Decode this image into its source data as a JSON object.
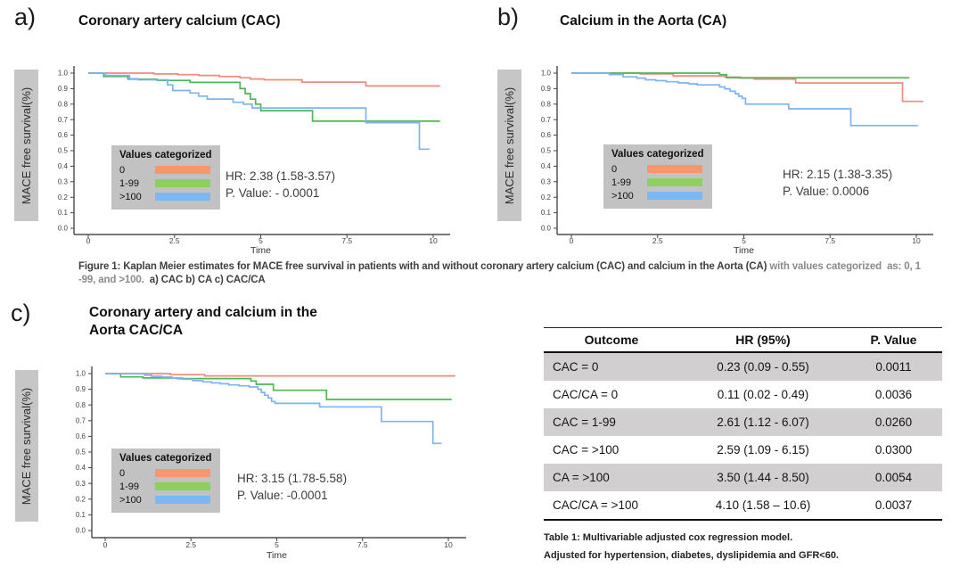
{
  "figure": {
    "panels": [
      {
        "label": "a)",
        "title": "Coronary artery calcium (CAC)",
        "hr": "HR: 2.38 (1.58-3.57)",
        "p": "P. Value: - 0.0001"
      },
      {
        "label": "b)",
        "title": "Calcium in the Aorta (CA)",
        "hr": "HR: 2.15 (1.38-3.35)",
        "p": "P. Value: 0.0006"
      },
      {
        "label": "c)",
        "title_line1": "Coronary artery and calcium in the",
        "title_line2": "Aorta CAC/CA",
        "hr": "HR: 3.15 (1.78-5.58)",
        "p": "P. Value: -0.0001"
      }
    ],
    "caption": {
      "dark1": "Figure 1: Kaplan Meier estimates for MACE free survival in patients with and without coronary artery calcium (CAC) and calcium in the Aorta (CA) ",
      "gray": "with values categorized  as: 0, 1 -99, and >100.  ",
      "dark2": "a) CAC b) CA c) CAC/CA"
    }
  },
  "legend": {
    "title": "Values categorized",
    "entries": [
      {
        "label": "0",
        "color": "#F9966D"
      },
      {
        "label": "1-99",
        "color": "#8ED05F"
      },
      {
        "label": ">100",
        "color": "#7AB8F5"
      }
    ]
  },
  "axes": {
    "ylabel": "MACE free survival(%)",
    "xlabel": "Time",
    "yticks": [
      0.0,
      0.1,
      0.2,
      0.3,
      0.4,
      0.5,
      0.6,
      0.7,
      0.8,
      0.9,
      1.0
    ],
    "xticks": [
      0,
      2.5,
      5,
      7.5,
      10
    ],
    "xtick_labels": [
      "0",
      "2.5",
      "5",
      "7.5",
      "10"
    ]
  },
  "chart_data": [
    {
      "type": "line",
      "subtype": "kaplan-meier-step",
      "title": "Coronary artery calcium (CAC)",
      "xlabel": "Time",
      "ylabel": "MACE free survival(%)",
      "xlim": [
        0,
        10.5
      ],
      "ylim": [
        0,
        1.0
      ],
      "hr": "2.38 (1.58-3.57)",
      "p_value": "- 0.0001",
      "series": [
        {
          "name": "0",
          "color": "#F08A7E",
          "points": [
            [
              0,
              1
            ],
            [
              1.9,
              0.995
            ],
            [
              2.6,
              0.99
            ],
            [
              3.2,
              0.985
            ],
            [
              3.8,
              0.978
            ],
            [
              4.4,
              0.97
            ],
            [
              4.7,
              0.962
            ],
            [
              5.1,
              0.957
            ],
            [
              6.2,
              0.942
            ],
            [
              8.05,
              0.917
            ],
            [
              10.2,
              0.917
            ]
          ]
        },
        {
          "name": "1-99",
          "color": "#4BB853",
          "points": [
            [
              0,
              1
            ],
            [
              0.45,
              0.978
            ],
            [
              1.15,
              0.961
            ],
            [
              2.0,
              0.953
            ],
            [
              2.95,
              0.94
            ],
            [
              4.4,
              0.9
            ],
            [
              4.55,
              0.868
            ],
            [
              4.7,
              0.832
            ],
            [
              4.85,
              0.8
            ],
            [
              5.0,
              0.758
            ],
            [
              6.5,
              0.69
            ],
            [
              10.2,
              0.69
            ]
          ]
        },
        {
          "name": ">100",
          "color": "#7FB3EF",
          "points": [
            [
              0,
              1
            ],
            [
              0.5,
              0.985
            ],
            [
              1.2,
              0.964
            ],
            [
              1.45,
              0.957
            ],
            [
              2.3,
              0.924
            ],
            [
              2.45,
              0.888
            ],
            [
              2.95,
              0.872
            ],
            [
              3.2,
              0.852
            ],
            [
              3.45,
              0.833
            ],
            [
              4.2,
              0.812
            ],
            [
              4.5,
              0.8
            ],
            [
              4.75,
              0.775
            ],
            [
              8.05,
              0.68
            ],
            [
              9.6,
              0.51
            ],
            [
              9.9,
              0.51
            ]
          ]
        }
      ]
    },
    {
      "type": "line",
      "subtype": "kaplan-meier-step",
      "title": "Calcium in the Aorta (CA)",
      "xlabel": "Time",
      "ylabel": "MACE free survival(%)",
      "xlim": [
        0,
        10.5
      ],
      "ylim": [
        0,
        1.0
      ],
      "hr": "2.15 (1.38-3.35)",
      "p_value": "0.0006",
      "series": [
        {
          "name": "0",
          "color": "#F08A7E",
          "points": [
            [
              0,
              1
            ],
            [
              2.0,
              0.995
            ],
            [
              2.95,
              0.982
            ],
            [
              4.45,
              0.974
            ],
            [
              4.9,
              0.968
            ],
            [
              5.3,
              0.961
            ],
            [
              6.5,
              0.937
            ],
            [
              9.6,
              0.818
            ],
            [
              10.2,
              0.818
            ]
          ]
        },
        {
          "name": "1-99",
          "color": "#4BB853",
          "points": [
            [
              0,
              1
            ],
            [
              4.3,
              0.99
            ],
            [
              4.5,
              0.97
            ],
            [
              9.8,
              0.97
            ]
          ]
        },
        {
          "name": ">100",
          "color": "#7FB3EF",
          "points": [
            [
              0,
              1
            ],
            [
              1.1,
              0.99
            ],
            [
              1.5,
              0.976
            ],
            [
              1.9,
              0.968
            ],
            [
              2.15,
              0.957
            ],
            [
              2.45,
              0.951
            ],
            [
              2.75,
              0.944
            ],
            [
              3.1,
              0.937
            ],
            [
              3.4,
              0.931
            ],
            [
              3.65,
              0.924
            ],
            [
              4.3,
              0.911
            ],
            [
              4.45,
              0.899
            ],
            [
              4.6,
              0.884
            ],
            [
              4.75,
              0.867
            ],
            [
              4.85,
              0.851
            ],
            [
              4.95,
              0.837
            ],
            [
              5.05,
              0.8
            ],
            [
              6.3,
              0.77
            ],
            [
              8.1,
              0.662
            ],
            [
              10.05,
              0.662
            ]
          ]
        }
      ]
    },
    {
      "type": "line",
      "subtype": "kaplan-meier-step",
      "title": "Coronary artery and calcium in the Aorta CAC/CA",
      "xlabel": "Time",
      "ylabel": "MACE free survival(%)",
      "xlim": [
        0,
        10.5
      ],
      "ylim": [
        0,
        1.0
      ],
      "hr": "3.15 (1.78-5.58)",
      "p_value": "-0.0001",
      "series": [
        {
          "name": "0",
          "color": "#F08A7E",
          "points": [
            [
              0,
              1
            ],
            [
              1.9,
              0.993
            ],
            [
              2.9,
              0.985
            ],
            [
              10.2,
              0.985
            ]
          ]
        },
        {
          "name": "1-99",
          "color": "#4BB853",
          "points": [
            [
              0.15,
              1
            ],
            [
              0.45,
              0.979
            ],
            [
              1.1,
              0.972
            ],
            [
              2.1,
              0.968
            ],
            [
              4.25,
              0.953
            ],
            [
              4.4,
              0.932
            ],
            [
              4.9,
              0.894
            ],
            [
              6.45,
              0.835
            ],
            [
              10.1,
              0.835
            ]
          ]
        },
        {
          "name": ">100",
          "color": "#7FB3EF",
          "points": [
            [
              0,
              1
            ],
            [
              1.15,
              0.99
            ],
            [
              1.35,
              0.983
            ],
            [
              1.65,
              0.978
            ],
            [
              1.95,
              0.972
            ],
            [
              2.25,
              0.964
            ],
            [
              2.55,
              0.955
            ],
            [
              2.85,
              0.947
            ],
            [
              3.1,
              0.941
            ],
            [
              3.35,
              0.935
            ],
            [
              3.6,
              0.928
            ],
            [
              3.9,
              0.922
            ],
            [
              4.2,
              0.915
            ],
            [
              4.45,
              0.9
            ],
            [
              4.55,
              0.88
            ],
            [
              4.65,
              0.862
            ],
            [
              4.75,
              0.845
            ],
            [
              4.85,
              0.822
            ],
            [
              4.95,
              0.81
            ],
            [
              6.25,
              0.788
            ],
            [
              8.05,
              0.695
            ],
            [
              9.55,
              0.555
            ],
            [
              9.8,
              0.555
            ]
          ]
        }
      ]
    }
  ],
  "table": {
    "headers": [
      "Outcome",
      "HR (95%)",
      "P. Value"
    ],
    "rows": [
      [
        "CAC = 0",
        "0.23 (0.09 - 0.55)",
        "0.0011"
      ],
      [
        "CAC/CA = 0",
        "0.11 (0.02 - 0.49)",
        "0.0036"
      ],
      [
        "CAC = 1-99",
        "2.61 (1.12 - 6.07)",
        "0.0260"
      ],
      [
        "CAC = >100",
        "2.59 (1.09 - 6.15)",
        "0.0300"
      ],
      [
        "CA = >100",
        "3.50 (1.44 - 8.50)",
        "0.0054"
      ],
      [
        "CAC/CA = >100",
        "4.10 (1.58 – 10.6)",
        "0.0037"
      ]
    ],
    "shaded_rows": [
      0,
      2,
      4
    ],
    "shade_color": "#D1CFCF",
    "caption_line1": "Table 1: Multivariable adjusted cox regression model.",
    "caption_line2": "Adjusted for hypertension, diabetes, dyslipidemia and GFR<60."
  }
}
